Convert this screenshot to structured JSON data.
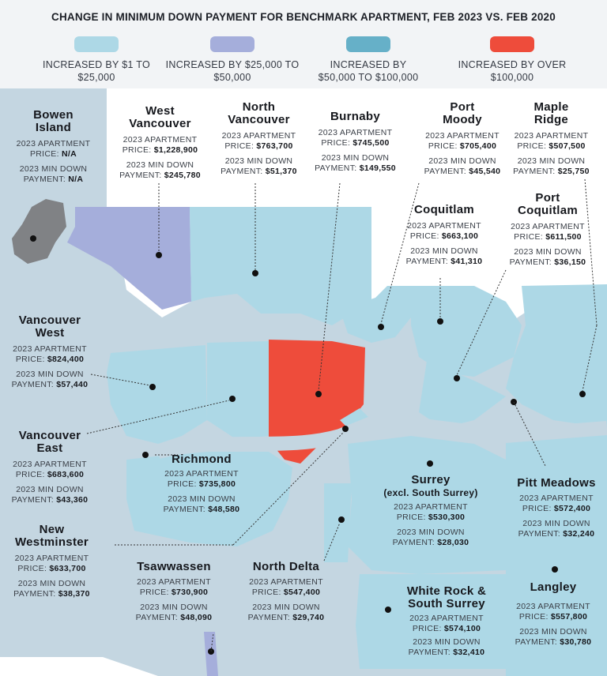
{
  "title": "CHANGE IN MINIMUM DOWN PAYMENT FOR BENCHMARK APARTMENT, FEB 2023 VS. FEB 2020",
  "legend": [
    {
      "color": "#add8e6",
      "line1": "INCREASED BY $1 TO",
      "line2": "$25,000"
    },
    {
      "color": "#a5aedb",
      "line1": "INCREASED BY $25,000 TO",
      "line2": "$50,000"
    },
    {
      "color": "#66b0c8",
      "line1": "INCREASED BY",
      "line2": "$50,000 TO $100,000"
    },
    {
      "color": "#ee4c3b",
      "line1": "INCREASED BY OVER",
      "line2": "$100,000"
    }
  ],
  "colors": {
    "background": "#f2f4f6",
    "water": "#c4d6e1",
    "land_white": "#ffffff",
    "tier1": "#add8e6",
    "tier2": "#a5aedb",
    "tier4": "#ee4c3b",
    "na": "#808285"
  },
  "labels": {
    "price_text": "2023 APARTMENT",
    "price_prefix": "PRICE:",
    "down_text": "2023 MIN DOWN",
    "down_prefix": "PAYMENT:"
  },
  "regions": [
    {
      "id": "bowen",
      "name_line1": "Bowen",
      "name_line2": "Island",
      "price": "N/A",
      "min_down": "N/A"
    },
    {
      "id": "west-vancouver",
      "name_line1": "West",
      "name_line2": "Vancouver",
      "price": "$1,228,900",
      "min_down": "$245,780"
    },
    {
      "id": "north-vancouver",
      "name_line1": "North",
      "name_line2": "Vancouver",
      "price": "$763,700",
      "min_down": "$51,370"
    },
    {
      "id": "burnaby",
      "name_line1": "Burnaby",
      "name_line2": "",
      "price": "$745,500",
      "min_down": "$149,550"
    },
    {
      "id": "port-moody",
      "name_line1": "Port",
      "name_line2": "Moody",
      "price": "$705,400",
      "min_down": "$45,540"
    },
    {
      "id": "maple-ridge",
      "name_line1": "Maple",
      "name_line2": "Ridge",
      "price": "$507,500",
      "min_down": "$25,750"
    },
    {
      "id": "coquitlam",
      "name_line1": "Coquitlam",
      "name_line2": "",
      "price": "$663,100",
      "min_down": "$41,310"
    },
    {
      "id": "port-coquitlam",
      "name_line1": "Port",
      "name_line2": "Coquitlam",
      "price": "$611,500",
      "min_down": "$36,150"
    },
    {
      "id": "vancouver-west",
      "name_line1": "Vancouver",
      "name_line2": "West",
      "price": "$824,400",
      "min_down": "$57,440"
    },
    {
      "id": "vancouver-east",
      "name_line1": "Vancouver",
      "name_line2": "East",
      "price": "$683,600",
      "min_down": "$43,360"
    },
    {
      "id": "richmond",
      "name_line1": "Richmond",
      "name_line2": "",
      "price": "$735,800",
      "min_down": "$48,580"
    },
    {
      "id": "surrey",
      "name_line1": "Surrey",
      "name_line2": "(excl. South Surrey)",
      "price": "$530,300",
      "min_down": "$28,030"
    },
    {
      "id": "pitt-meadows",
      "name_line1": "Pitt Meadows",
      "name_line2": "",
      "price": "$572,400",
      "min_down": "$32,240"
    },
    {
      "id": "new-westminster",
      "name_line1": "New",
      "name_line2": "Westminster",
      "price": "$633,700",
      "min_down": "$38,370"
    },
    {
      "id": "tsawwassen",
      "name_line1": "Tsawwassen",
      "name_line2": "",
      "price": "$730,900",
      "min_down": "$48,090"
    },
    {
      "id": "north-delta",
      "name_line1": "North Delta",
      "name_line2": "",
      "price": "$547,400",
      "min_down": "$29,740"
    },
    {
      "id": "white-rock",
      "name_line1": "White Rock &",
      "name_line2": "South Surrey",
      "price": "$574,100",
      "min_down": "$32,410"
    },
    {
      "id": "langley",
      "name_line1": "Langley",
      "name_line2": "",
      "price": "$557,800",
      "min_down": "$30,780"
    }
  ]
}
